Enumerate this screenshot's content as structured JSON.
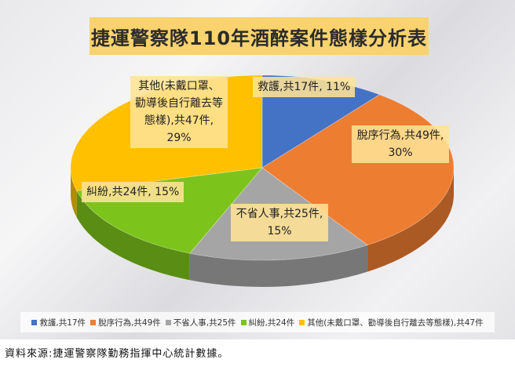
{
  "chart_data": {
    "type": "pie",
    "title": "捷運警察隊110年酒醉案件態樣分析表",
    "slices": [
      {
        "legend": "救護,共17件",
        "label_lines": [
          "救護,共17件, 11%"
        ],
        "value": 17,
        "percent": 11,
        "color": "#4472c4"
      },
      {
        "legend": "脫序行為,共49件",
        "label_lines": [
          "脫序行為,共49件,",
          "30%"
        ],
        "value": 49,
        "percent": 30,
        "color": "#ed7d31"
      },
      {
        "legend": "不省人事,共25件",
        "label_lines": [
          "不省人事,共25件,",
          "15%"
        ],
        "value": 25,
        "percent": 15,
        "color": "#a5a5a5"
      },
      {
        "legend": "糾紛,共24件",
        "label_lines": [
          "糾紛,共24件, 15%"
        ],
        "value": 24,
        "percent": 15,
        "color": "#7cc41c"
      },
      {
        "legend": "其他(未戴口罩、勸導後自行離去等態樣),共47件",
        "label_lines": [
          "其他(未戴口罩、",
          "勸導後自行離去等",
          "態樣),共47件,",
          "29%"
        ],
        "value": 47,
        "percent": 29,
        "color": "#ffc000"
      }
    ],
    "legend_position": "bottom"
  },
  "source": "資料來源:捷運警察隊勤務指揮中心統計數據。"
}
